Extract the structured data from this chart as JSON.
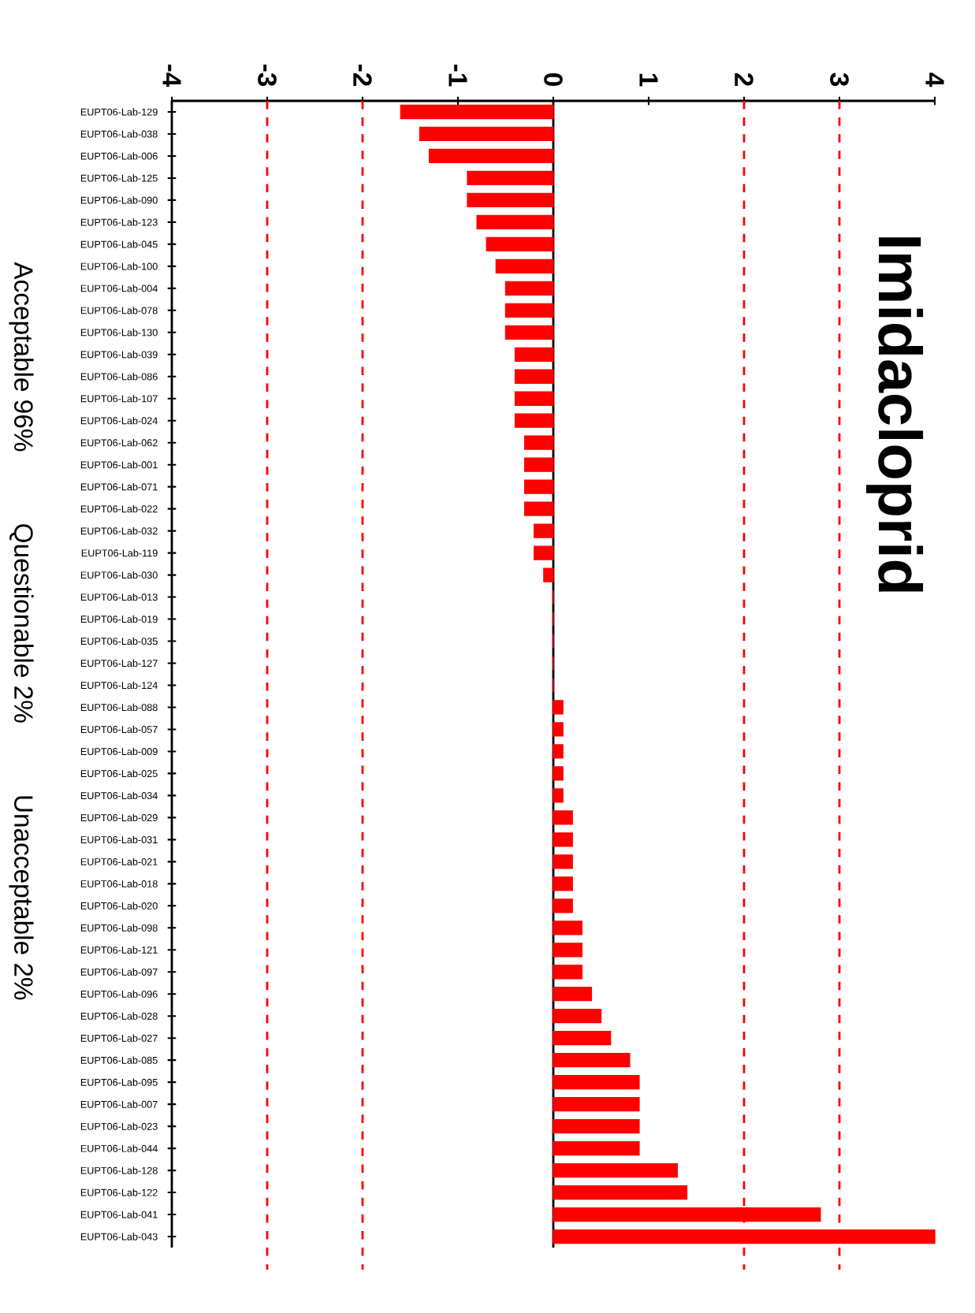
{
  "chart_data": {
    "type": "bar",
    "orientation": "horizontal",
    "title": "Imidacloprid",
    "categories": [
      "EUPT06-Lab-129",
      "EUPT06-Lab-038",
      "EUPT06-Lab-006",
      "EUPT06-Lab-125",
      "EUPT06-Lab-090",
      "EUPT06-Lab-123",
      "EUPT06-Lab-045",
      "EUPT06-Lab-100",
      "EUPT06-Lab-004",
      "EUPT06-Lab-078",
      "EUPT06-Lab-130",
      "EUPT06-Lab-039",
      "EUPT06-Lab-086",
      "EUPT06-Lab-107",
      "EUPT06-Lab-024",
      "EUPT06-Lab-062",
      "EUPT06-Lab-001",
      "EUPT06-Lab-071",
      "EUPT06-Lab-022",
      "EUPT06-Lab-032",
      "EUPT06-Lab-119",
      "EUPT06-Lab-030",
      "EUPT06-Lab-013",
      "EUPT06-Lab-019",
      "EUPT06-Lab-035",
      "EUPT06-Lab-127",
      "EUPT06-Lab-124",
      "EUPT06-Lab-088",
      "EUPT06-Lab-057",
      "EUPT06-Lab-009",
      "EUPT06-Lab-025",
      "EUPT06-Lab-034",
      "EUPT06-Lab-029",
      "EUPT06-Lab-031",
      "EUPT06-Lab-021",
      "EUPT06-Lab-018",
      "EUPT06-Lab-020",
      "EUPT06-Lab-098",
      "EUPT06-Lab-121",
      "EUPT06-Lab-097",
      "EUPT06-Lab-096",
      "EUPT06-Lab-028",
      "EUPT06-Lab-027",
      "EUPT06-Lab-085",
      "EUPT06-Lab-095",
      "EUPT06-Lab-007",
      "EUPT06-Lab-023",
      "EUPT06-Lab-044",
      "EUPT06-Lab-128",
      "EUPT06-Lab-122",
      "EUPT06-Lab-041",
      "EUPT06-Lab-043"
    ],
    "values": [
      -1.6,
      -1.4,
      -1.3,
      -0.9,
      -0.9,
      -0.8,
      -0.7,
      -0.6,
      -0.5,
      -0.5,
      -0.5,
      -0.4,
      -0.4,
      -0.4,
      -0.4,
      -0.3,
      -0.3,
      -0.3,
      -0.3,
      -0.2,
      -0.2,
      -0.1,
      0,
      0,
      0,
      0,
      0,
      0.1,
      0.1,
      0.1,
      0.1,
      0.1,
      0.2,
      0.2,
      0.2,
      0.2,
      0.2,
      0.3,
      0.3,
      0.3,
      0.4,
      0.5,
      0.6,
      0.8,
      0.9,
      0.9,
      0.9,
      0.9,
      1.3,
      1.4,
      2.8,
      4.0
    ],
    "color": "#ff0000",
    "xlim": [
      -4,
      4
    ],
    "xticks": [
      -4,
      -3,
      -2,
      -1,
      0,
      1,
      2,
      3,
      4
    ],
    "ref_lines": [
      {
        "axis": "x",
        "value": -3,
        "color": "#ff0000",
        "line_style": "dashed"
      },
      {
        "axis": "x",
        "value": -2,
        "color": "#ff0000",
        "line_style": "dashed"
      },
      {
        "axis": "x",
        "value": 2,
        "color": "#ff0000",
        "line_style": "dashed"
      },
      {
        "axis": "x",
        "value": 3,
        "color": "#ff0000",
        "line_style": "dashed"
      }
    ],
    "annotations": [
      "Acceptable 96%",
      "Questionable 2%",
      "Unacceptable 2%"
    ]
  }
}
